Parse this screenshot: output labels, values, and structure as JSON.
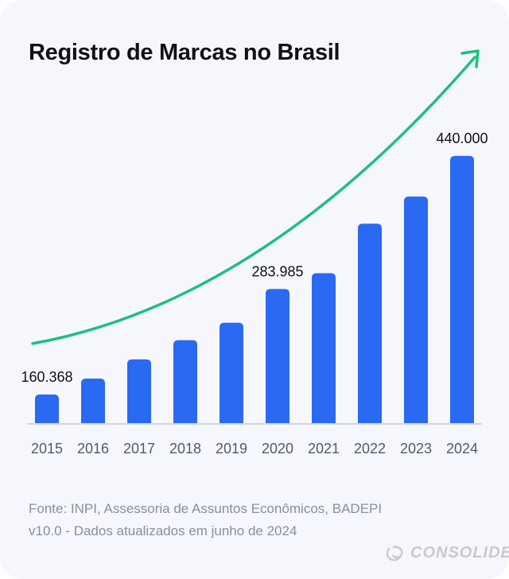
{
  "chart_data": {
    "type": "bar",
    "title": "Registro de Marcas no Brasil",
    "xlabel": "",
    "ylabel": "",
    "categories": [
      "2015",
      "2016",
      "2017",
      "2018",
      "2019",
      "2020",
      "2021",
      "2022",
      "2023",
      "2024"
    ],
    "values": [
      160368,
      179000,
      201500,
      224000,
      244500,
      283985,
      302500,
      360500,
      392300,
      440000
    ],
    "data_labels": {
      "0": "160.368",
      "5": "283.985",
      "9": "440.000"
    },
    "ylim": [
      126800,
      440000
    ],
    "grid": false,
    "trend_arrow": true,
    "colors": {
      "bar": "#2a6af2",
      "trend": "#1fbf7f",
      "axis": "#d4d6dc"
    }
  },
  "source": {
    "line1": "Fonte: INPI, Assessoria de Assuntos Econômicos, BADEPI",
    "line2": "v10.0 - Dados atualizados em junho de 2024"
  },
  "brand": {
    "name": "CONSOLIDE"
  }
}
